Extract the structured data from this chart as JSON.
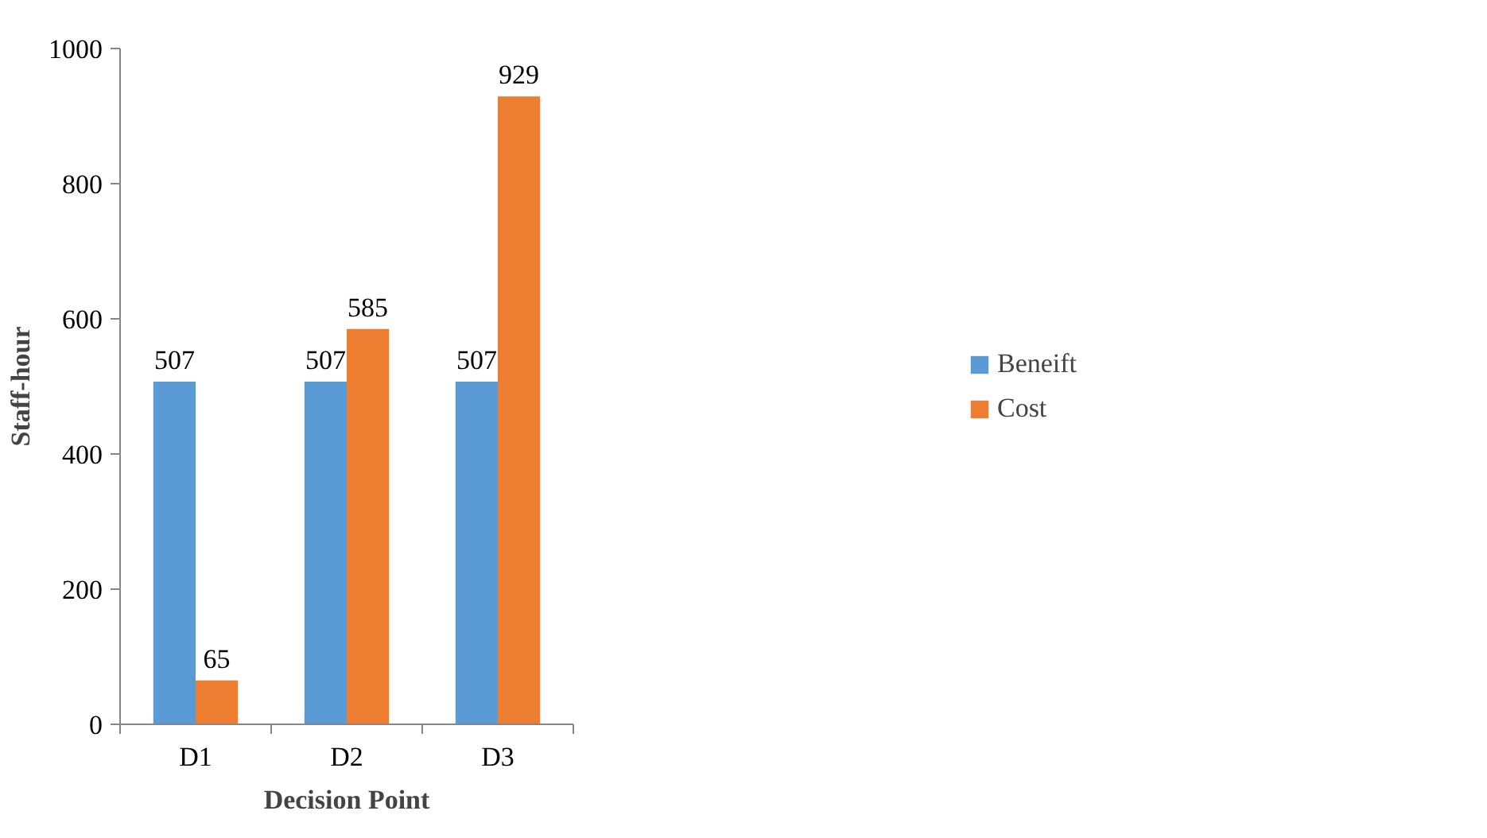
{
  "chart_data": {
    "type": "bar",
    "xlabel": "Decision Point",
    "ylabel": "Staff-hour",
    "categories": [
      "D1",
      "D2",
      "D3"
    ],
    "series": [
      {
        "name": "Beneift",
        "color": "#5b9bd5",
        "values": [
          507,
          507,
          507
        ]
      },
      {
        "name": "Cost",
        "color": "#ed7d31",
        "values": [
          65,
          585,
          929
        ]
      }
    ],
    "ylim": [
      0,
      1000
    ],
    "yticks": [
      0,
      200,
      400,
      600,
      800,
      1000
    ],
    "grid": false,
    "legend": "right",
    "data_labels": true
  }
}
